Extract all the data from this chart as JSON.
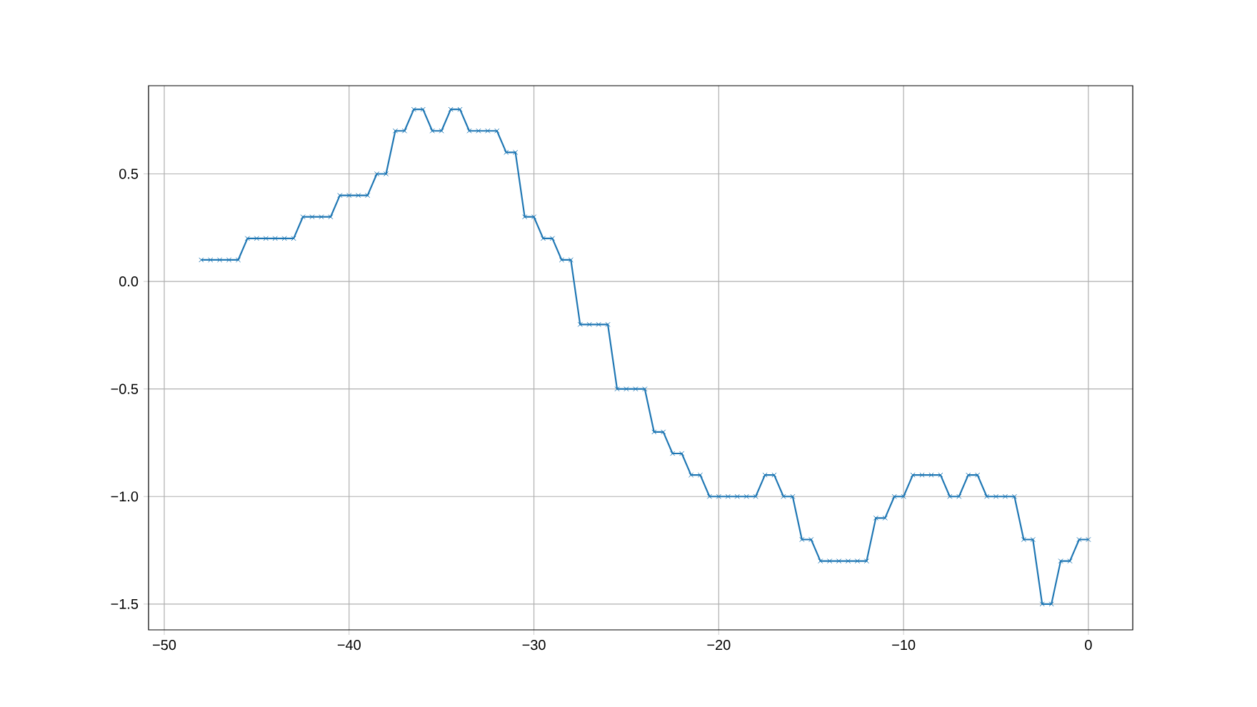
{
  "chart_data": {
    "type": "line",
    "x": [
      -48,
      -47.5,
      -47,
      -46.5,
      -46,
      -45.5,
      -45,
      -44.5,
      -44,
      -43.5,
      -43,
      -42.5,
      -42,
      -41.5,
      -41,
      -40.5,
      -40,
      -39.5,
      -39,
      -38.5,
      -38,
      -37.5,
      -37,
      -36.5,
      -36,
      -35.5,
      -35,
      -34.5,
      -34,
      -33.5,
      -33,
      -32.5,
      -32,
      -31.5,
      -31,
      -30.5,
      -30,
      -29.5,
      -29,
      -28.5,
      -28,
      -27.5,
      -27,
      -26.5,
      -26,
      -25.5,
      -25,
      -24.5,
      -24,
      -23.5,
      -23,
      -22.5,
      -22,
      -21.5,
      -21,
      -20.5,
      -20,
      -19.5,
      -19,
      -18.5,
      -18,
      -17.5,
      -17,
      -16.5,
      -16,
      -15.5,
      -15,
      -14.5,
      -14,
      -13.5,
      -13,
      -12.5,
      -12,
      -11.5,
      -11,
      -10.5,
      -10,
      -9.5,
      -9,
      -8.5,
      -8,
      -7.5,
      -7,
      -6.5,
      -6,
      -5.5,
      -5,
      -4.5,
      -4,
      -3.5,
      -3,
      -2.5,
      -2,
      -1.5,
      -1,
      -0.5,
      0
    ],
    "series": [
      {
        "color": "#1f77b4",
        "values": [
          0.1,
          0.1,
          0.1,
          0.1,
          0.1,
          0.2,
          0.2,
          0.2,
          0.2,
          0.2,
          0.2,
          0.3,
          0.3,
          0.3,
          0.3,
          0.4,
          0.4,
          0.4,
          0.4,
          0.5,
          0.5,
          0.7,
          0.7,
          0.8,
          0.8,
          0.7,
          0.7,
          0.8,
          0.8,
          0.7,
          0.7,
          0.7,
          0.7,
          0.6,
          0.6,
          0.3,
          0.3,
          0.2,
          0.2,
          0.1,
          0.1,
          -0.2,
          -0.2,
          -0.2,
          -0.2,
          -0.5,
          -0.5,
          -0.5,
          -0.5,
          -0.7,
          -0.7,
          -0.8,
          -0.8,
          -0.9,
          -0.9,
          -1.0,
          -1.0,
          -1.0,
          -1.0,
          -1.0,
          -1.0,
          -0.9,
          -0.9,
          -1.0,
          -1.0,
          -1.2,
          -1.2,
          -1.3,
          -1.3,
          -1.3,
          -1.3,
          -1.3,
          -1.3,
          -1.1,
          -1.1,
          -1.0,
          -1.0,
          -0.9,
          -0.9,
          -0.9,
          -0.9,
          -1.0,
          -1.0,
          -0.9,
          -0.9,
          -1.0,
          -1.0,
          -1.0,
          -1.0,
          -1.2,
          -1.2,
          -1.5,
          -1.5,
          -1.3,
          -1.3,
          -1.2,
          -1.2
        ]
      }
    ],
    "xlim": [
      -50.85,
      2.4
    ],
    "ylim": [
      -1.62,
      0.91
    ],
    "xticks": [
      {
        "value": -50,
        "label": "−50"
      },
      {
        "value": -40,
        "label": "−40"
      },
      {
        "value": -30,
        "label": "−30"
      },
      {
        "value": -20,
        "label": "−20"
      },
      {
        "value": -10,
        "label": "−10"
      },
      0
    ],
    "yticks": [
      {
        "value": -1.5,
        "label": "−1.5"
      },
      {
        "value": -1.0,
        "label": "−1.0"
      },
      {
        "value": -0.5,
        "label": "−0.5"
      },
      {
        "value": 0.0,
        "label": "0.0"
      },
      {
        "value": 0.5,
        "label": "0.5"
      }
    ],
    "grid": true,
    "marker": "cross",
    "line_style": "solid"
  }
}
